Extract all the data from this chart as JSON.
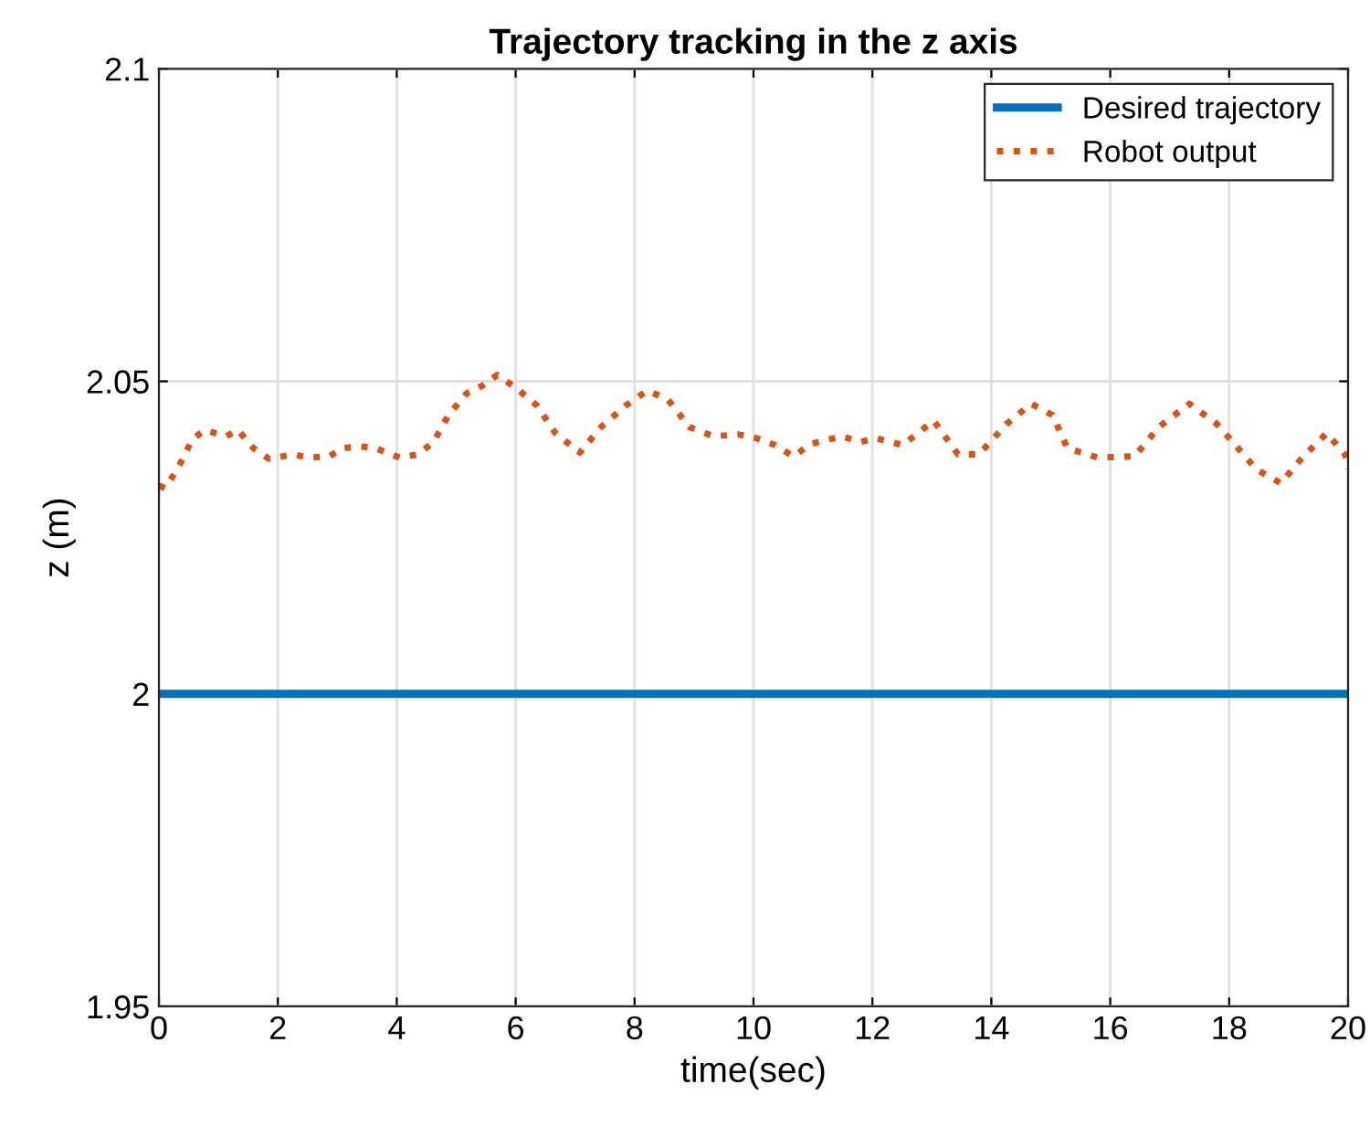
{
  "chart_data": {
    "type": "line",
    "title": "Trajectory tracking in the z axis",
    "xlabel": "time(sec)",
    "ylabel": "z (m)",
    "xlim": [
      0,
      20
    ],
    "xticks": [
      0,
      2,
      4,
      6,
      8,
      10,
      12,
      14,
      16,
      18,
      20
    ],
    "ylim": [
      1.95,
      2.1
    ],
    "yticks": [
      1.95,
      2,
      2.05,
      2.1
    ],
    "grid": true,
    "legend": "top right",
    "series": [
      {
        "name": "Desired trajectory",
        "color": "#0072bd",
        "line_style": "solid",
        "x": [
          0,
          20
        ],
        "values": [
          2,
          2
        ]
      },
      {
        "name": "Robot output",
        "color": "#d95319",
        "line_style": "dotted",
        "x": [
          0,
          0.1,
          0.31,
          0.56,
          0.77,
          1.13,
          1.33,
          1.59,
          1.85,
          2.26,
          2.51,
          2.87,
          3.08,
          3.38,
          3.64,
          4.05,
          4.36,
          4.62,
          4.87,
          5.18,
          5.44,
          5.69,
          6.0,
          6.36,
          6.67,
          7.08,
          7.44,
          7.85,
          8.21,
          8.56,
          8.92,
          9.33,
          9.74,
          10.05,
          10.36,
          10.67,
          10.97,
          11.49,
          11.79,
          12.05,
          12.51,
          13.03,
          13.44,
          13.79,
          14.26,
          14.67,
          15.03,
          15.28,
          15.79,
          16.41,
          16.82,
          17.33,
          17.79,
          18.15,
          18.46,
          18.87,
          19.23,
          19.64,
          19.95,
          20
        ],
        "values": [
          2.0333,
          2.0329,
          2.0359,
          2.0407,
          2.0422,
          2.0412,
          2.0422,
          2.0393,
          2.0376,
          2.0383,
          2.0378,
          2.038,
          2.0393,
          2.0396,
          2.0393,
          2.0378,
          2.0383,
          2.0403,
          2.0446,
          2.0481,
          2.0493,
          2.051,
          2.049,
          2.0461,
          2.0417,
          2.0386,
          2.0427,
          2.0461,
          2.0485,
          2.0471,
          2.0427,
          2.0412,
          2.0415,
          2.0409,
          2.0398,
          2.038,
          2.04,
          2.0412,
          2.0403,
          2.0409,
          2.0398,
          2.0437,
          2.0383,
          2.0383,
          2.0432,
          2.0464,
          2.0446,
          2.0393,
          2.0378,
          2.038,
          2.0427,
          2.0464,
          2.0432,
          2.0393,
          2.0359,
          2.0337,
          2.0378,
          2.0417,
          2.0383,
          2.036
        ]
      }
    ]
  }
}
